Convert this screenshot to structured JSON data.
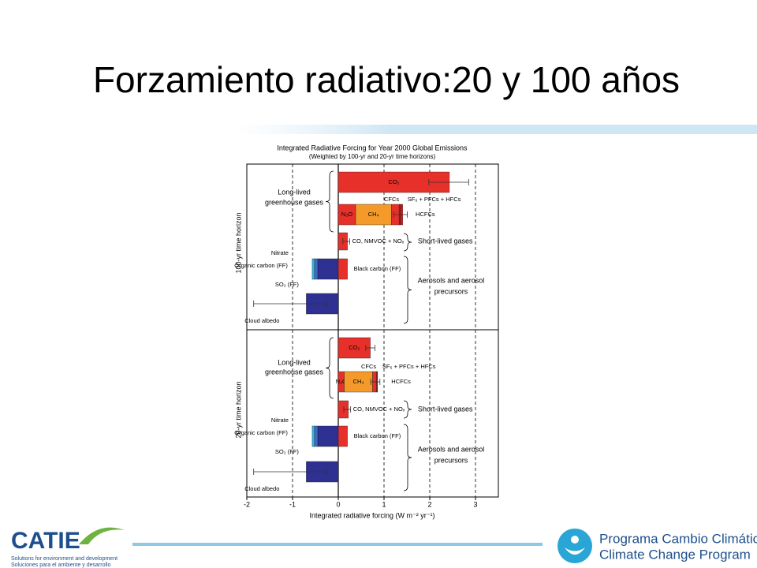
{
  "slide": {
    "title": "Forzamiento radiativo:20 y 100 años",
    "footer_left": {
      "logo": "CATIE",
      "line1": "Solutions for environment and development",
      "line2": "Soluciones para el ambiente y desarrollo"
    },
    "footer_right": {
      "line1": "Programa Cambio Climático",
      "line2": "Climate Change Program"
    }
  },
  "chart_data": {
    "type": "bar",
    "orientation": "horizontal",
    "title": "Integrated Radiative Forcing for Year 2000 Global Emissions",
    "subtitle": "(Weighted by 100-yr and 20-yr time horizons)",
    "xlabel": "Integrated radiative forcing (W m⁻² yr⁻¹)",
    "xlim": [
      -2,
      3.5
    ],
    "xticks": [
      -2,
      -1,
      0,
      1,
      2,
      3
    ],
    "grid": true,
    "panels": [
      {
        "ylabel": "100-yr time horizon",
        "groups": [
          {
            "lines": [
              "Long-lived",
              "greenhouse gases"
            ]
          },
          {
            "lines": [
              "Short-lived gases"
            ]
          },
          {
            "lines": [
              "Aerosols and aerosol",
              "precursors"
            ]
          }
        ],
        "rows": [
          {
            "segments": [
              {
                "name": "CO₂",
                "color": "#e8302a",
                "value": 2.43
              }
            ],
            "error": [
              0.45,
              0.42
            ]
          },
          {
            "segments": [
              {
                "name": "N₂O",
                "color": "#e8302a",
                "value": 0.38
              },
              {
                "name": "CH₄",
                "color": "#f39a2b",
                "value": 0.78
              },
              {
                "name": "CFCs",
                "color": "#e8302a",
                "value": 0.17
              },
              {
                "name": "HCFCs",
                "color": "#a51c1c",
                "value": 0.05
              },
              {
                "name": "SF₆ + PFCs + HFCs",
                "color": "#e8302a",
                "value": 0.03
              }
            ],
            "error": [
              0.2,
              0.1
            ]
          },
          {
            "segments": [
              {
                "name": "CO, NMVOC + NOₓ",
                "color": "#e8302a",
                "value": 0.2
              }
            ],
            "error": [
              0.1,
              0.05
            ]
          },
          {
            "segments": [
              {
                "name": "Black carbon (FF)",
                "color": "#e8302a",
                "value": 0.2
              },
              {
                "name": "SO₂ (FF)",
                "color": "#2e3092",
                "value": -0.45
              },
              {
                "name": "Organic carbon (FF)",
                "color": "#3a6fc4",
                "value": -0.07
              },
              {
                "name": "Nitrate",
                "color": "#38b6e8",
                "value": -0.05
              }
            ]
          },
          {
            "segments": [
              {
                "name": "Cloud albedo",
                "color": "#2e3092",
                "value": -0.7
              }
            ],
            "error": [
              1.15,
              0.45
            ]
          }
        ]
      },
      {
        "ylabel": "20-yr time horizon",
        "groups": [
          {
            "lines": [
              "Long-lived",
              "greenhouse gases"
            ]
          },
          {
            "lines": [
              "Short-lived gases"
            ]
          },
          {
            "lines": [
              "Aerosols and aerosol",
              "precursors"
            ]
          }
        ],
        "rows": [
          {
            "segments": [
              {
                "name": "CO₂",
                "color": "#e8302a",
                "value": 0.7
              }
            ],
            "error": [
              0.1,
              0.1
            ]
          },
          {
            "segments": [
              {
                "name": "N₂O",
                "color": "#e8302a",
                "value": 0.13
              },
              {
                "name": "CH₄",
                "color": "#f39a2b",
                "value": 0.62
              },
              {
                "name": "CFCs",
                "color": "#e8302a",
                "value": 0.08
              },
              {
                "name": "HCFCs",
                "color": "#a51c1c",
                "value": 0.02
              },
              {
                "name": "SF₆ + PFCs + HFCs",
                "color": "#e8302a",
                "value": 0.01
              }
            ],
            "error": [
              0.15,
              0.05
            ]
          },
          {
            "segments": [
              {
                "name": "CO, NMVOC + NOₓ",
                "color": "#e8302a",
                "value": 0.22
              }
            ],
            "error": [
              0.1,
              0.05
            ]
          },
          {
            "segments": [
              {
                "name": "Black carbon (FF)",
                "color": "#e8302a",
                "value": 0.2
              },
              {
                "name": "SO₂ (FF)",
                "color": "#2e3092",
                "value": -0.45
              },
              {
                "name": "Organic carbon (FF)",
                "color": "#3a6fc4",
                "value": -0.07
              },
              {
                "name": "Nitrate",
                "color": "#38b6e8",
                "value": -0.05
              }
            ]
          },
          {
            "segments": [
              {
                "name": "Cloud albedo",
                "color": "#2e3092",
                "value": -0.7
              }
            ],
            "error": [
              1.15,
              0.45
            ]
          }
        ]
      }
    ]
  }
}
